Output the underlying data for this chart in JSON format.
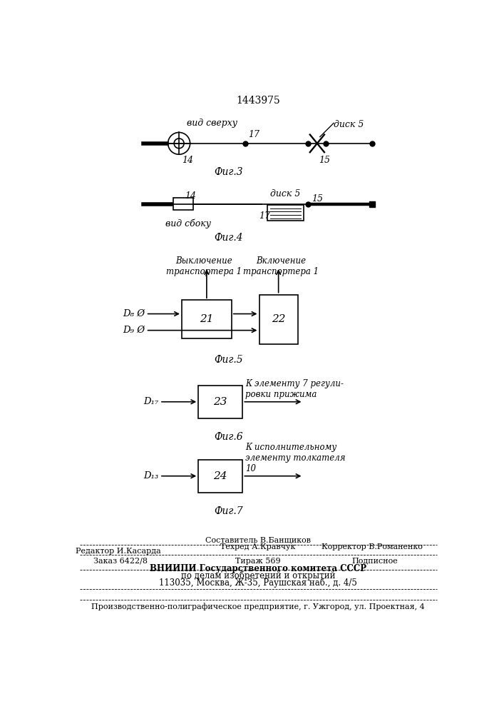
{
  "title": "1443975",
  "bg_color": "#ffffff",
  "fig3_label": "Фиг.3",
  "fig4_label": "Фиг.4",
  "fig5_label": "Фиг.5",
  "fig6_label": "Фиг.6",
  "fig7_label": "Фиг.7",
  "vid_sverhu": "вид сверху",
  "vid_sboku": "вид сбоку",
  "disk5_label": "диск 5",
  "label_14": "14",
  "label_15": "15",
  "label_17": "17",
  "label_21": "21",
  "label_22": "22",
  "label_23": "23",
  "label_24": "24",
  "vykl_transp": "Выключение\nтранспортера 1",
  "vkl_transp": "Включение\nтранспортера 1",
  "k_elementu7": "К элементу 7 регули-\nровки прижима",
  "k_ispolnitelnomu": "К исполнительному\nэлементу толкателя\n10",
  "D8_label": "D₈ Ø",
  "D9_label": "D₉ Ø",
  "D17_label": "D₁₇",
  "D13_label": "D₁₃",
  "footer_sostavitel": "Составитель В.Банщиков",
  "footer_tehred": "Техред А.Кравчук",
  "footer_korrektor": "Корректор В.Романенко",
  "footer_redaktor": "Редактор И.Касарда",
  "footer_zakaz": "Заказ 6422/8",
  "footer_tirazh": "Тираж 569",
  "footer_podpisnoe": "Подписное",
  "footer_vniip1": "ВНИИПИ Государственного комитета СССР",
  "footer_vniip2": "по делам изобретений и открытий",
  "footer_vniip3": "113035, Москва, Ж-35, Раушская наб., д. 4/5",
  "footer_proizv": "Производственно-полиграфическое предприятие, г. Ужгород, ул. Проектная, 4"
}
